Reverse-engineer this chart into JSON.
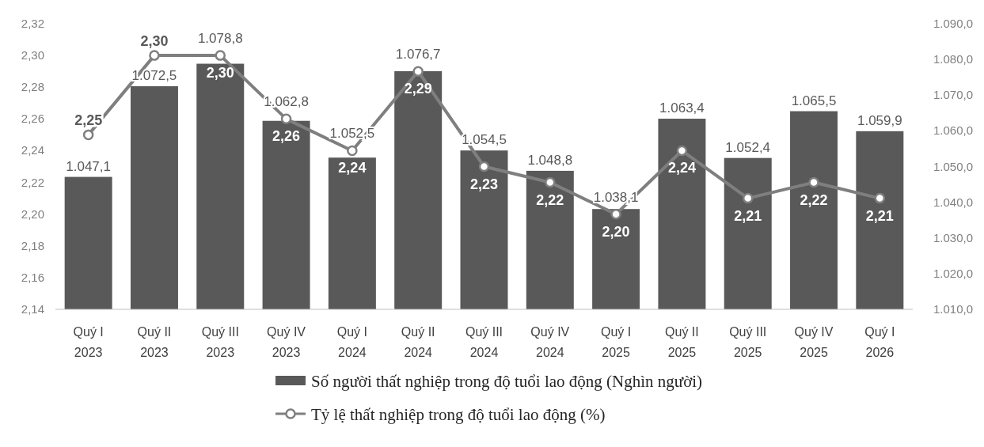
{
  "chart_data": {
    "type": "bar",
    "categories": [
      "Quý I\n2023",
      "Quý II\n2023",
      "Quý III\n2023",
      "Quý IV\n2023",
      "Quý I\n2024",
      "Quý II\n2024",
      "Quý III\n2024",
      "Quý IV\n2024",
      "Quý I\n2025",
      "Quý II\n2025",
      "Quý III\n2025",
      "Quý IV\n2025",
      "Quý I\n2026"
    ],
    "series": [
      {
        "name": "Số người thất nghiệp trong độ tuổi lao động (Nghìn người)",
        "axis": "y2",
        "color": "#595959",
        "values": [
          1047.1,
          1072.5,
          1078.8,
          1062.8,
          1052.5,
          1076.7,
          1054.5,
          1048.8,
          1038.1,
          1063.4,
          1052.4,
          1065.5,
          1059.9
        ],
        "value_labels": [
          "1.047,1",
          "1.072,5",
          "1.078,8",
          "1.062,8",
          "1.052,5",
          "1.076,7",
          "1.054,5",
          "1.048,8",
          "1.038,1",
          "1.063,4",
          "1.052,4",
          "1.065,5",
          "1.059,9"
        ]
      },
      {
        "name": "Tỷ lệ thất nghiệp trong độ tuổi lao động (%)",
        "type": "line",
        "color": "#7f7f7f",
        "marker": "circle",
        "values": [
          2.25,
          2.3,
          2.3,
          2.26,
          2.24,
          2.29,
          2.23,
          2.22,
          2.2,
          2.24,
          2.21,
          2.22,
          2.21
        ],
        "value_labels": [
          "2,25",
          "2,30",
          "2,30",
          "2,26",
          "2,24",
          "2,29",
          "2,23",
          "2,22",
          "2,20",
          "2,24",
          "2,21",
          "2,22",
          "2,21"
        ]
      }
    ],
    "ylim": [
      2.14,
      2.32
    ],
    "yticks": [
      {
        "value": 2.14,
        "label": "2,14"
      },
      {
        "value": 2.16,
        "label": "2,16"
      },
      {
        "value": 2.18,
        "label": "2,18"
      },
      {
        "value": 2.2,
        "label": "2,20"
      },
      {
        "value": 2.22,
        "label": "2,22"
      },
      {
        "value": 2.24,
        "label": "2,24"
      },
      {
        "value": 2.26,
        "label": "2,26"
      },
      {
        "value": 2.28,
        "label": "2,28"
      },
      {
        "value": 2.3,
        "label": "2,30"
      },
      {
        "value": 2.32,
        "label": "2,32"
      }
    ],
    "y2lim": [
      1010,
      1090
    ],
    "y2ticks": [
      {
        "value": 1010,
        "label": "1.010,0"
      },
      {
        "value": 1020,
        "label": "1.020,0"
      },
      {
        "value": 1030,
        "label": "1.030,0"
      },
      {
        "value": 1040,
        "label": "1.040,0"
      },
      {
        "value": 1050,
        "label": "1.050,0"
      },
      {
        "value": 1060,
        "label": "1.060,0"
      },
      {
        "value": 1070,
        "label": "1.070,0"
      },
      {
        "value": 1080,
        "label": "1.080,0"
      },
      {
        "value": 1090,
        "label": "1.090,0"
      }
    ],
    "grid": false,
    "legend": "bottom"
  }
}
